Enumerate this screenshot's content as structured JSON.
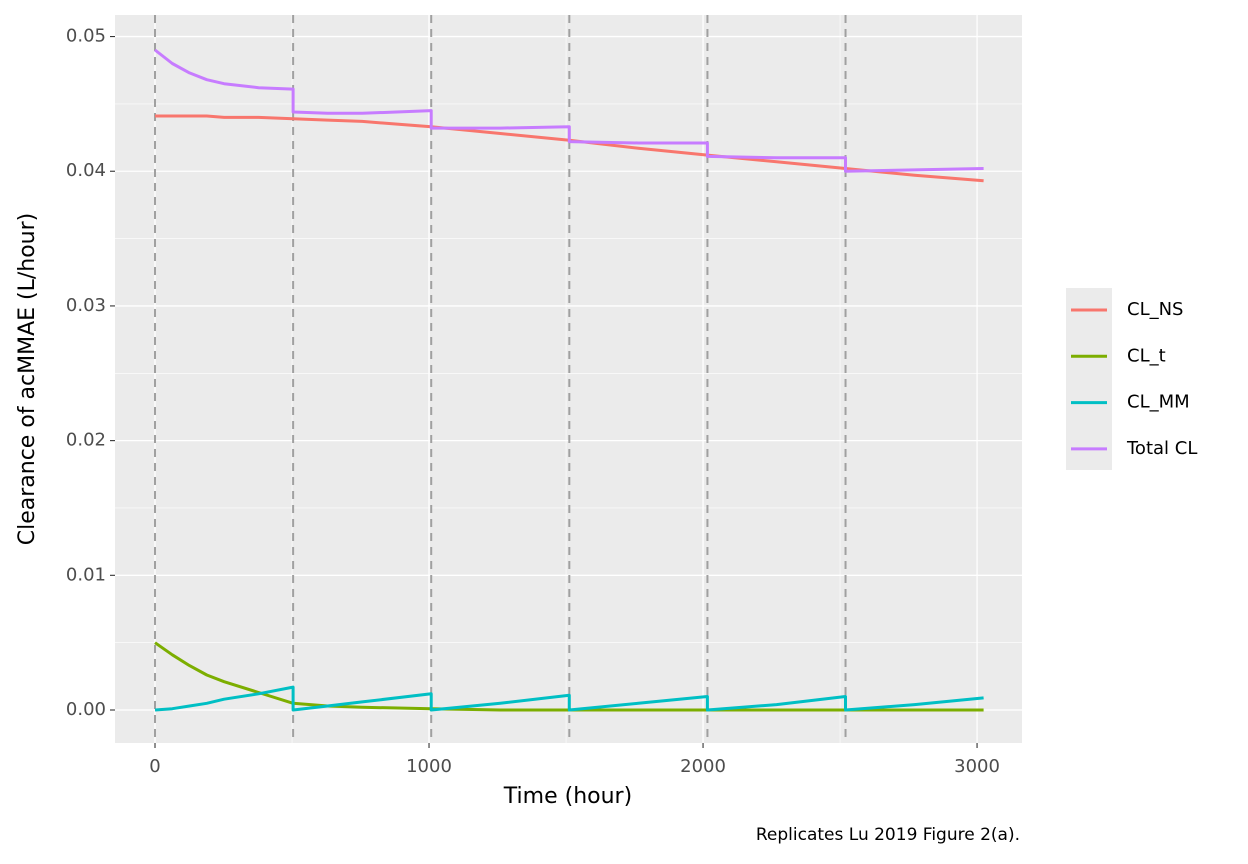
{
  "chart_data": {
    "type": "line",
    "xlabel": "Time (hour)",
    "ylabel": "Clearance of acMMAE (L/hour)",
    "caption": "Replicates Lu 2019 Figure 2(a).",
    "x": [
      0,
      63,
      126,
      189,
      252,
      378,
      504,
      504,
      630,
      756,
      1008,
      1008,
      1260,
      1512,
      1512,
      1764,
      2016,
      2016,
      2268,
      2520,
      2520,
      2772,
      3024
    ],
    "series": [
      {
        "name": "CL_NS",
        "color": "#F8766D",
        "values": [
          0.0441,
          0.0441,
          0.0441,
          0.0441,
          0.044,
          0.044,
          0.0439,
          0.0439,
          0.0438,
          0.0437,
          0.0433,
          0.0433,
          0.0428,
          0.0423,
          0.0423,
          0.0417,
          0.0412,
          0.0412,
          0.0407,
          0.0402,
          0.0402,
          0.0397,
          0.0393
        ]
      },
      {
        "name": "CL_t",
        "color": "#7CAE00",
        "values": [
          0.005,
          0.0041,
          0.0033,
          0.0026,
          0.0021,
          0.0013,
          0.0005,
          0.0005,
          0.0003,
          0.0002,
          0.0001,
          0.0001,
          0,
          0,
          0,
          0,
          0,
          0,
          0,
          0,
          0,
          0,
          0
        ]
      },
      {
        "name": "CL_MM",
        "color": "#00BFC4",
        "values": [
          0,
          0.0001,
          0.0003,
          0.0005,
          0.0008,
          0.0012,
          0.0017,
          0,
          0.0003,
          0.0006,
          0.0012,
          0,
          0.0005,
          0.0011,
          0,
          0.0005,
          0.001,
          0,
          0.0004,
          0.001,
          0,
          0.0004,
          0.0009
        ]
      },
      {
        "name": "Total CL",
        "color": "#C77CFF",
        "values": [
          0.049,
          0.048,
          0.0473,
          0.0468,
          0.0465,
          0.0462,
          0.0461,
          0.0444,
          0.0443,
          0.0443,
          0.0445,
          0.0432,
          0.0432,
          0.0433,
          0.0422,
          0.0421,
          0.0421,
          0.0411,
          0.041,
          0.041,
          0.04,
          0.0401,
          0.0402
        ]
      }
    ],
    "vlines": [
      0,
      504,
      1008,
      1512,
      2016,
      2520
    ],
    "xlim": [
      -146,
      3164
    ],
    "ylim": [
      -0.00245,
      0.0516
    ],
    "xticks": [
      0,
      1000,
      2000,
      3000
    ],
    "yticks": [
      {
        "value": 0,
        "label": "0.00"
      },
      0.01,
      0.02,
      0.03,
      0.04,
      0.05
    ],
    "minor_xticks": [
      500,
      1500,
      2500
    ],
    "minor_yticks": [
      0.005,
      0.015,
      0.025,
      0.035,
      0.045
    ],
    "grid": true,
    "legend": "right"
  }
}
